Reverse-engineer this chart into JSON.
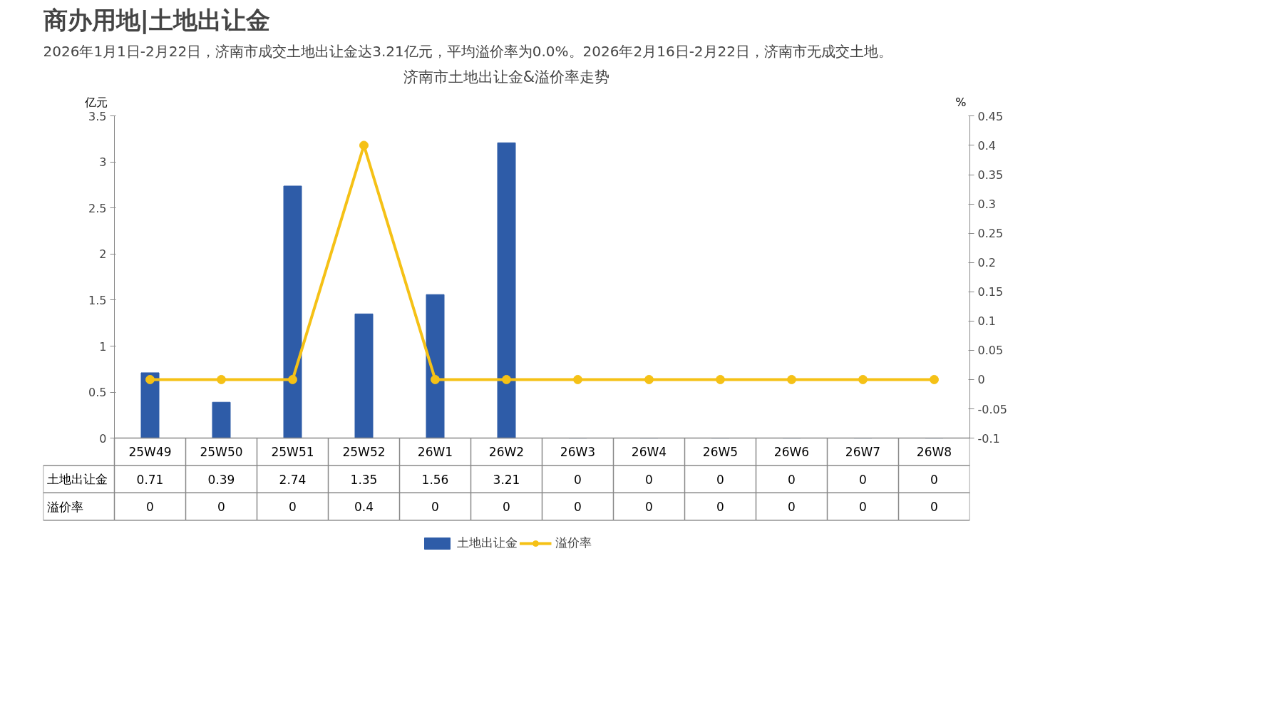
{
  "chart_data": {
    "type": "bar",
    "title": "商办用地|土地出让金",
    "subtitle": "2026年1月1日-2月22日，济南市成交土地出让金达3.21亿元，平均溢价率为0.0%。2026年2月16日-2月22日，济南市无成交土地。",
    "annotations": [
      "济南市土地出让金&溢价率走势"
    ],
    "categories": [
      "25W49",
      "25W50",
      "25W51",
      "25W52",
      "26W1",
      "26W2",
      "26W3",
      "26W4",
      "26W5",
      "26W6",
      "26W7",
      "26W8"
    ],
    "ylabel": "亿元",
    "y2label": "%",
    "series": [
      {
        "name": "土地出让金",
        "color": "#2e5ca8",
        "values": [
          0.71,
          0.39,
          2.74,
          1.35,
          1.56,
          3.21,
          0,
          0,
          0,
          0,
          0,
          0
        ]
      },
      {
        "name": "溢价率",
        "type": "line",
        "axis": "y2",
        "color": "#f5c116",
        "values": [
          0,
          0,
          0,
          0.4,
          0,
          0,
          0,
          0,
          0,
          0,
          0,
          0
        ]
      }
    ],
    "ylim": [
      0,
      3.5
    ],
    "yticks": [
      0,
      0.5,
      1,
      1.5,
      2,
      2.5,
      3,
      3.5
    ],
    "y2lim": [
      -0.1,
      0.45
    ],
    "y2ticks": [
      -0.1,
      -0.05,
      0,
      0.05,
      0.1,
      0.15,
      0.2,
      0.25,
      0.3,
      0.35,
      0.4,
      0.45
    ],
    "marker": "circle",
    "line_style": "solid",
    "grid": false,
    "legend": "bottom",
    "data_labels": true
  }
}
